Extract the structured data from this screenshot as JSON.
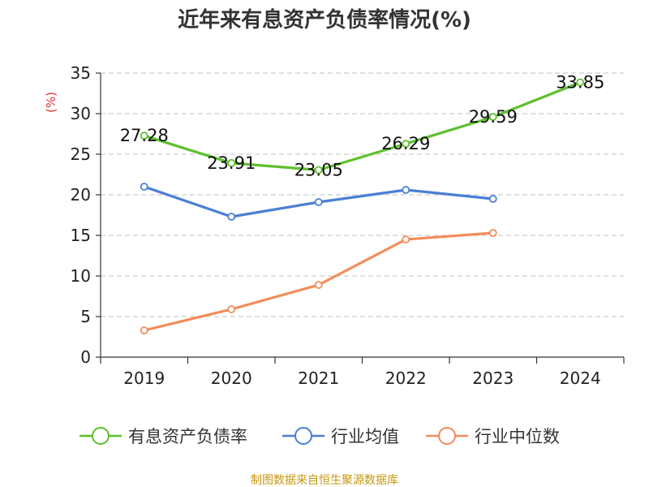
{
  "chart_data": {
    "type": "line",
    "title": "近年来有息资产负债率情况(%)",
    "ylabel": "(%)",
    "xlabel": "",
    "ylim": [
      0,
      35
    ],
    "yticks": [
      0,
      5,
      10,
      15,
      20,
      25,
      30,
      35
    ],
    "grid": true,
    "legend_position": "bottom",
    "categories": [
      "2019",
      "2020",
      "2021",
      "2022",
      "2023",
      "2024"
    ],
    "series": [
      {
        "name": "有息资产负债率",
        "color": "#5ec02c",
        "values": [
          27.28,
          23.91,
          23.05,
          26.29,
          29.59,
          33.85
        ],
        "labels": [
          "27.28",
          "23.91",
          "23.05",
          "26.29",
          "29.59",
          "33.85"
        ]
      },
      {
        "name": "行业均值",
        "color": "#4a7fd4",
        "values": [
          21.0,
          17.3,
          19.1,
          20.6,
          19.5,
          null
        ]
      },
      {
        "name": "行业中位数",
        "color": "#f28c5a",
        "values": [
          3.3,
          5.9,
          8.9,
          14.5,
          15.3,
          null
        ]
      }
    ]
  },
  "source": {
    "text": "制图数据来自恒生聚源数据库",
    "color": "#c8960c"
  },
  "ylabel_color": "#e03030"
}
